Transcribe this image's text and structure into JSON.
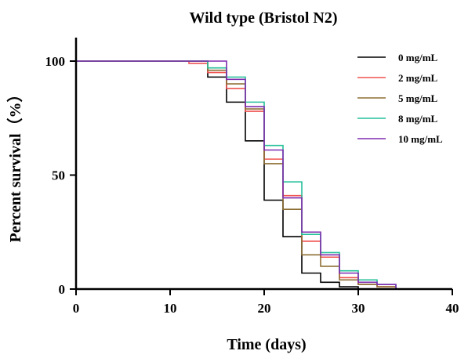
{
  "chart_data": {
    "type": "line",
    "step": true,
    "title": "Wild type (Bristol N2)",
    "xlabel": "Time (days)",
    "ylabel": "Percent survival（%）",
    "xlim": [
      0,
      40
    ],
    "ylim": [
      0,
      100
    ],
    "xticks": [
      0,
      10,
      20,
      30,
      40
    ],
    "yticks": [
      0,
      50,
      100
    ],
    "legend_position": "top-right",
    "grid": false,
    "series": [
      {
        "name": "0 mg/mL",
        "color": "#000000",
        "x": [
          0,
          14,
          16,
          18,
          20,
          22,
          24,
          26,
          28,
          30,
          32
        ],
        "y": [
          100,
          93,
          82,
          65,
          39,
          23,
          7,
          3,
          1,
          0,
          0
        ]
      },
      {
        "name": "2 mg/mL",
        "color": "#ef5350",
        "x": [
          0,
          12,
          14,
          16,
          18,
          20,
          22,
          24,
          26,
          28,
          30,
          32,
          34
        ],
        "y": [
          100,
          99,
          95,
          88,
          78,
          57,
          41,
          21,
          14,
          5,
          2,
          1,
          0
        ]
      },
      {
        "name": "5 mg/mL",
        "color": "#8d6e34",
        "x": [
          0,
          14,
          16,
          18,
          20,
          22,
          24,
          26,
          28,
          30,
          32,
          34
        ],
        "y": [
          100,
          96,
          90,
          79,
          55,
          35,
          15,
          10,
          4,
          2,
          1,
          0
        ]
      },
      {
        "name": "8 mg/mL",
        "color": "#26c09a",
        "x": [
          0,
          14,
          16,
          18,
          20,
          22,
          24,
          26,
          28,
          30,
          32,
          34
        ],
        "y": [
          100,
          97,
          93,
          82,
          63,
          47,
          24,
          16,
          8,
          4,
          2,
          0
        ]
      },
      {
        "name": "10 mg/mL",
        "color": "#7e2bb0",
        "x": [
          0,
          16,
          18,
          20,
          22,
          24,
          26,
          28,
          30,
          32,
          34
        ],
        "y": [
          100,
          92,
          80,
          61,
          40,
          25,
          15,
          7,
          3,
          2,
          0
        ]
      }
    ]
  }
}
